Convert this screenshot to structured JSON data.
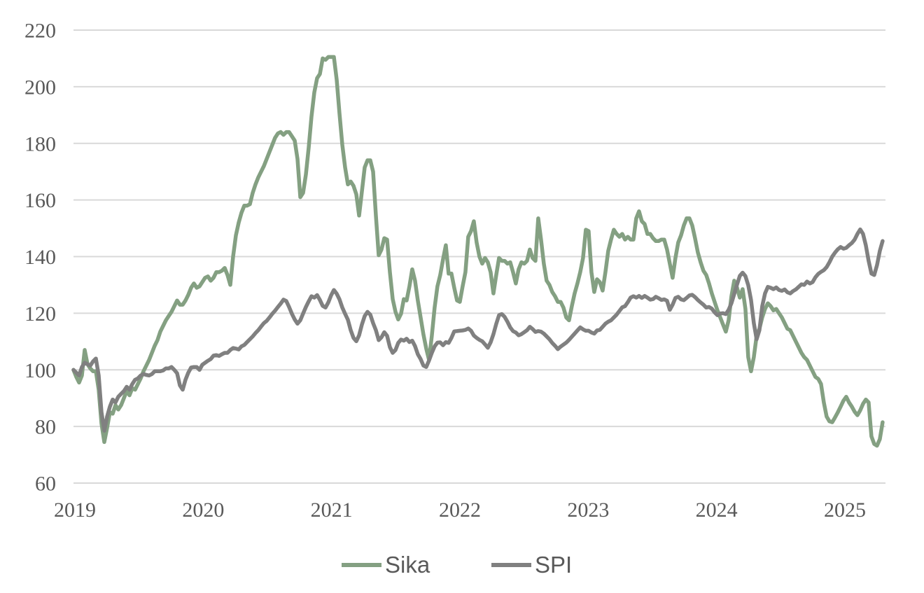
{
  "chart_data": {
    "type": "line",
    "title": "",
    "xlabel": "",
    "ylabel": "",
    "x_axis": {
      "tick_labels": [
        "2019",
        "2020",
        "2021",
        "2022",
        "2023",
        "2024",
        "2025"
      ],
      "tick_years": [
        2019,
        2020,
        2021,
        2022,
        2023,
        2024,
        2025
      ],
      "range_years": [
        2018.989,
        2025.32
      ]
    },
    "y_axis": {
      "tick_labels": [
        "60",
        "80",
        "100",
        "120",
        "140",
        "160",
        "180",
        "200",
        "220"
      ],
      "tick_values": [
        60,
        80,
        100,
        120,
        140,
        160,
        180,
        200,
        220
      ],
      "ylim": [
        60,
        220
      ],
      "gridlines": true
    },
    "legend": {
      "position": "bottom-center",
      "entries": [
        {
          "label": "Sika",
          "color": "#84A082"
        },
        {
          "label": "SPI",
          "color": "#808080"
        }
      ]
    },
    "sampling": {
      "start_year": 2018.989,
      "step_years": 0.021817
    },
    "series": [
      {
        "name": "Sika",
        "color": "#84A082",
        "values": [
          100,
          97.5,
          95.5,
          98,
          107,
          102,
          100.5,
          99.5,
          99.5,
          93,
          81,
          74.5,
          79.5,
          85,
          84.5,
          87.5,
          86,
          87.5,
          90,
          92.5,
          91,
          93.5,
          93,
          95,
          97,
          99.5,
          101.5,
          103.5,
          106,
          108.5,
          110.5,
          113.5,
          115.5,
          117.5,
          119,
          120.5,
          122.5,
          124.5,
          123,
          123,
          124.5,
          126.5,
          129,
          130.5,
          129,
          129.5,
          131,
          132.5,
          133,
          131.5,
          132.5,
          134.5,
          134.5,
          135,
          136,
          133.5,
          130,
          140,
          147.5,
          152,
          155.5,
          158,
          158,
          158.5,
          162.5,
          165.5,
          168,
          170,
          172,
          174.5,
          177,
          179.5,
          182,
          183.5,
          184,
          183,
          184,
          184,
          182.5,
          181,
          174.5,
          161,
          162.5,
          169,
          178.5,
          189.5,
          198,
          203,
          204.5,
          210,
          209.5,
          210.5,
          210.5,
          210.5,
          202.5,
          190.5,
          179.5,
          171.5,
          165.5,
          166.5,
          165,
          162,
          154.5,
          163,
          171.5,
          174,
          174,
          170,
          154.5,
          140.5,
          142.5,
          146.5,
          146,
          134.5,
          125,
          120.5,
          117.8,
          119.8,
          125,
          124.5,
          129.5,
          135.5,
          131.5,
          124.5,
          118.5,
          112.5,
          107.5,
          103.5,
          112,
          122,
          129.5,
          133.5,
          139,
          144,
          134,
          134,
          129,
          124.5,
          124,
          129.5,
          134.5,
          147,
          149,
          152.5,
          145,
          140,
          137.5,
          139.5,
          138,
          134.5,
          127,
          133.5,
          139.5,
          138.5,
          138.5,
          137.5,
          138,
          134.5,
          130.5,
          135.5,
          138,
          137.5,
          138.5,
          142.5,
          139.5,
          138.5,
          153.5,
          146,
          137.5,
          131.5,
          130,
          127.5,
          126,
          124,
          124,
          122,
          118.5,
          117.5,
          122.5,
          127,
          130.5,
          134.5,
          139.5,
          149.5,
          149,
          134.5,
          127.5,
          132,
          131,
          128,
          134.5,
          142,
          146,
          149.5,
          148,
          147,
          148,
          146,
          147,
          146,
          146,
          153.5,
          156,
          152.5,
          151.5,
          148,
          148,
          146.5,
          145.5,
          145.5,
          146,
          146,
          142.5,
          137.5,
          132.5,
          139.5,
          145,
          147.5,
          151,
          153.5,
          153.5,
          151,
          146.5,
          141.5,
          138,
          135,
          133.5,
          130.5,
          127,
          124,
          121,
          118.5,
          116,
          113.5,
          117.5,
          126,
          131.5,
          129,
          125.5,
          128.5,
          121.5,
          104.5,
          99.5,
          104.5,
          112,
          114.5,
          118.5,
          121.5,
          123.5,
          122.5,
          121,
          121.5,
          120,
          118.5,
          116.5,
          114.5,
          114,
          112,
          110,
          108,
          106,
          104.5,
          103.5,
          101.5,
          99.5,
          97.5,
          96.8,
          95,
          88.5,
          83.5,
          81.8,
          81.5,
          83.2,
          85,
          87,
          89.1,
          90.5,
          88.5,
          87,
          85.2,
          84,
          85.7,
          88,
          89.5,
          88.5,
          76.5,
          73.8,
          73.2,
          75.5,
          81.5
        ]
      },
      {
        "name": "SPI",
        "color": "#808080",
        "values": [
          100,
          99,
          98,
          101,
          102.5,
          102,
          101.5,
          103,
          104,
          98,
          85,
          78.5,
          83.5,
          87,
          89.5,
          88.5,
          90.5,
          91.5,
          92.5,
          94,
          93,
          95,
          96.5,
          97,
          98,
          98.5,
          98.2,
          98,
          98.5,
          99.5,
          99.5,
          99.5,
          99.8,
          100.5,
          100.5,
          101,
          100,
          98.8,
          94.5,
          93,
          96.5,
          99,
          100.8,
          101,
          101,
          100,
          101.8,
          102.5,
          103.2,
          103.8,
          105,
          105.2,
          104.9,
          105.5,
          106,
          106,
          107,
          107.7,
          107.5,
          107.2,
          108.3,
          108.8,
          109.8,
          110.8,
          111.8,
          113,
          114,
          115.3,
          116.5,
          117.3,
          118.5,
          119.8,
          120.9,
          122.2,
          123.4,
          124.8,
          124.3,
          122.2,
          119.8,
          117.8,
          116.3,
          117.5,
          119.9,
          122.2,
          124.2,
          126,
          125.5,
          126.4,
          124.7,
          122.6,
          122,
          123.8,
          126.3,
          128.2,
          126.9,
          124.9,
          122,
          119.8,
          117.7,
          114,
          111.3,
          110.1,
          112.2,
          116,
          119,
          120.5,
          119.5,
          116.5,
          114,
          110.5,
          111.5,
          113.3,
          112,
          108,
          106,
          107,
          109.5,
          110.7,
          110.3,
          111,
          109.8,
          110.3,
          108.4,
          105.5,
          103.8,
          101.5,
          101,
          103.3,
          106,
          108.3,
          109.6,
          109.7,
          108.7,
          109.8,
          109.5,
          111.3,
          113.6,
          113.7,
          113.8,
          113.9,
          114.1,
          114.6,
          113.8,
          112.1,
          111.3,
          110.6,
          110.1,
          109,
          107.8,
          109.7,
          112.6,
          116.2,
          119.3,
          119.7,
          118.7,
          117,
          115,
          113.7,
          113.2,
          112.2,
          112.6,
          113.3,
          114,
          115.2,
          114.4,
          113.4,
          113.7,
          113.5,
          112.8,
          111.8,
          110.8,
          109.5,
          108.5,
          107.3,
          108.2,
          108.9,
          109.6,
          110.6,
          111.7,
          112.8,
          113.9,
          115,
          114.3,
          113.8,
          113.8,
          113.2,
          112.8,
          113.9,
          114.1,
          115.2,
          116.3,
          117,
          117.5,
          118.5,
          119.5,
          120.8,
          122.1,
          122.5,
          123.9,
          125.5,
          126,
          125.5,
          126.1,
          125.4,
          126.1,
          125.5,
          124.8,
          125,
          125.8,
          125.3,
          124.7,
          124.9,
          124.4,
          121.2,
          123,
          125.4,
          125.8,
          124.9,
          124.6,
          125.4,
          126.3,
          126.5,
          125.7,
          124.7,
          123.8,
          123,
          122,
          122.2,
          121.6,
          120.3,
          119.3,
          119.9,
          120,
          119.7,
          121.2,
          123.5,
          126.8,
          130.1,
          133.2,
          134.3,
          133.1,
          129.9,
          124.7,
          116.5,
          110.8,
          114,
          122.5,
          127,
          129.3,
          129,
          128.5,
          129.1,
          128.2,
          127.9,
          128.4,
          127.4,
          127,
          127.8,
          128.4,
          129.3,
          130.2,
          130,
          131.2,
          130.5,
          131,
          132.7,
          133.9,
          134.6,
          135.2,
          136.3,
          138,
          140,
          141.4,
          142.6,
          143.4,
          142.8,
          143.1,
          144,
          144.8,
          146,
          148,
          149.6,
          148,
          144,
          138.5,
          134,
          133.5,
          137,
          142,
          145.5
        ]
      }
    ]
  },
  "colors": {
    "grid": "#D9D9D9",
    "tick_text": "#595959",
    "background": "#FFFFFF"
  }
}
